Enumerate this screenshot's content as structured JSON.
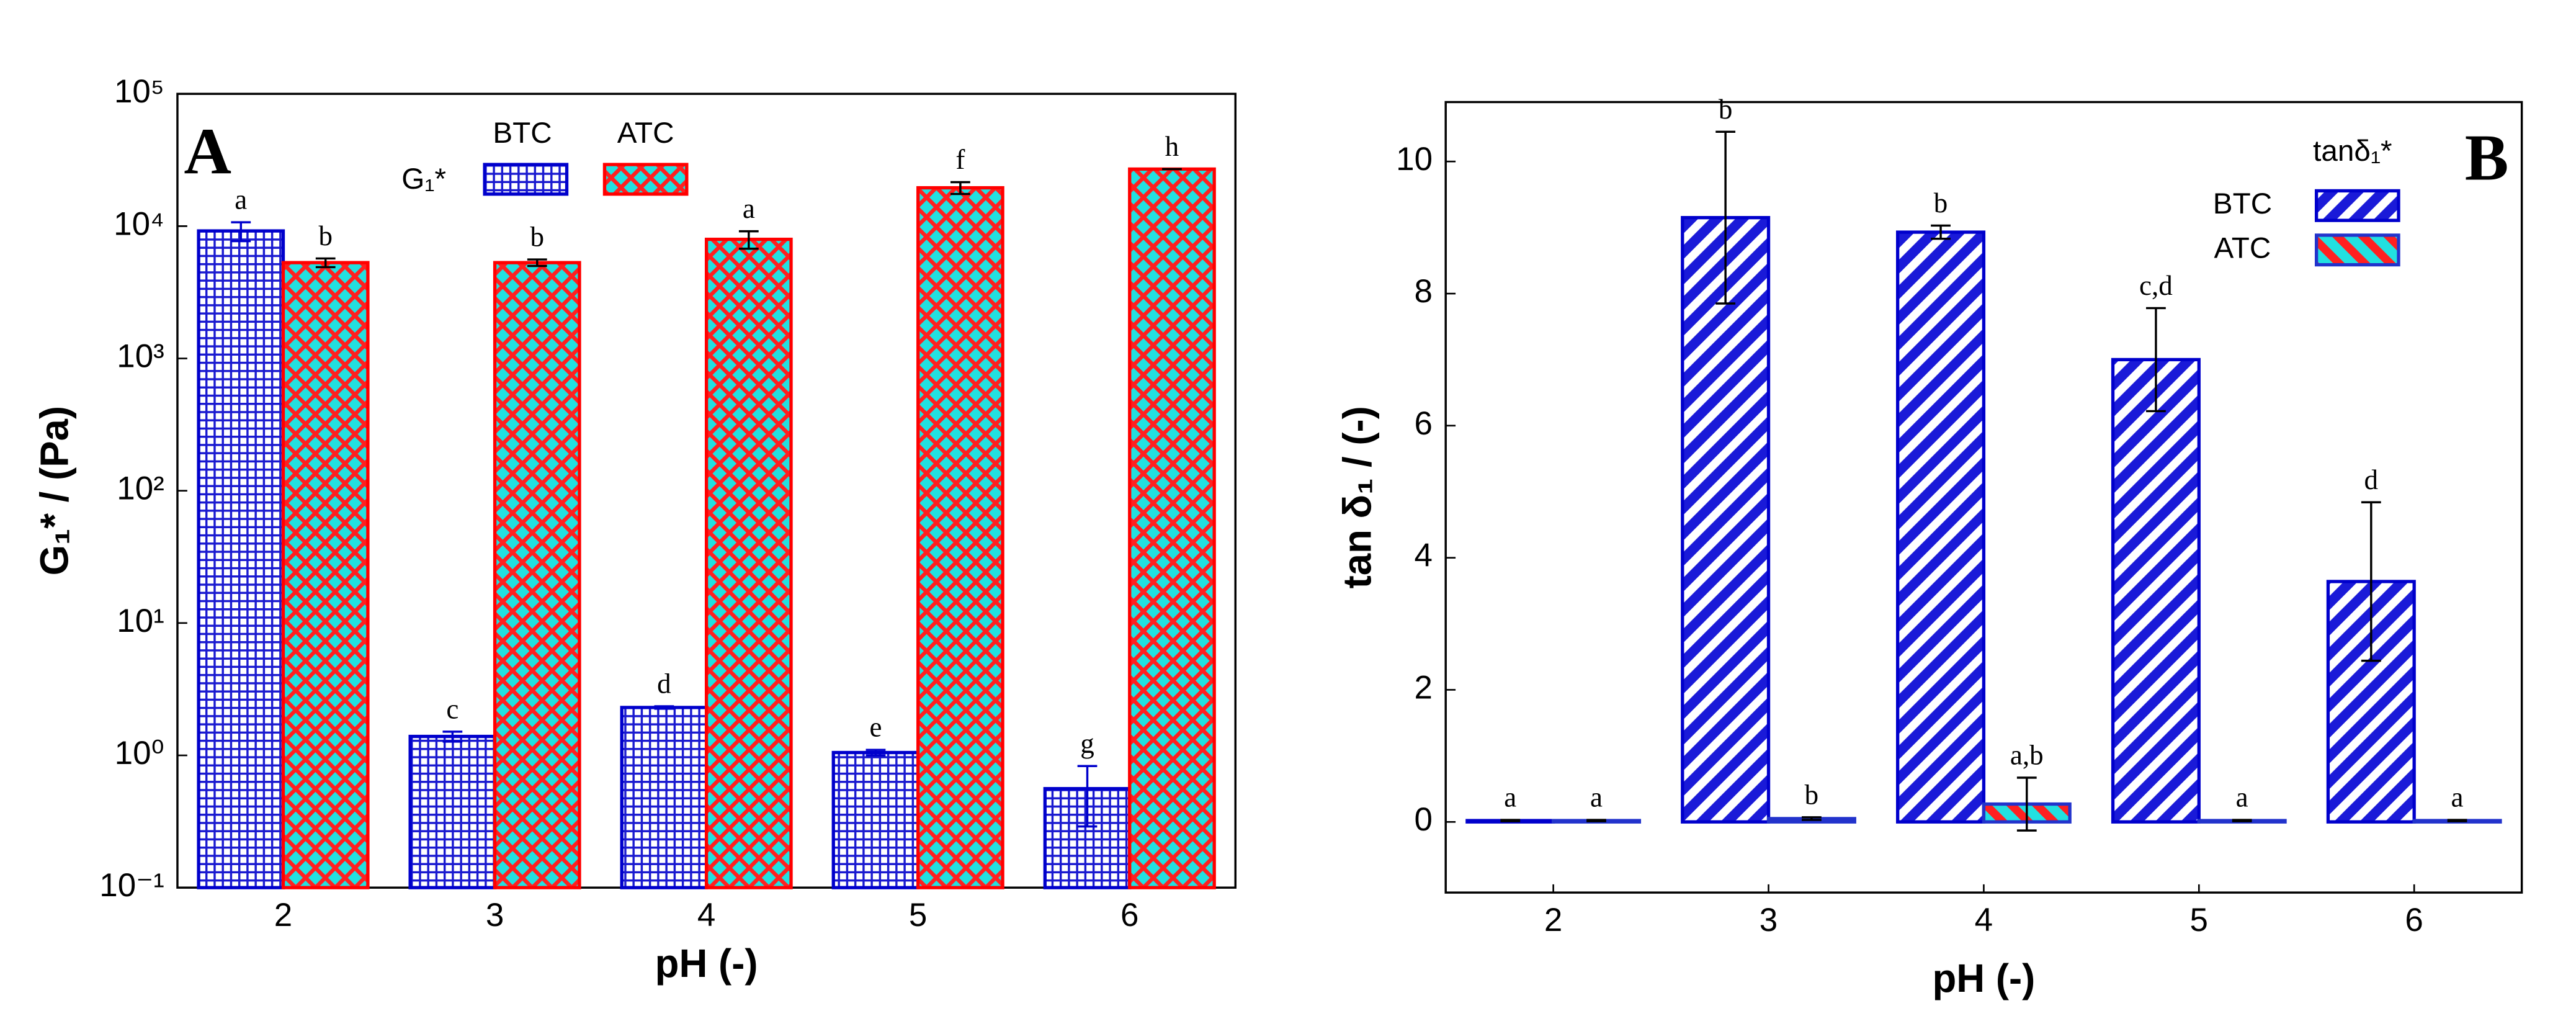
{
  "chart_data": [
    {
      "type": "bar",
      "panel_label": "A",
      "log_y": true,
      "categories": [
        "2",
        "3",
        "4",
        "5",
        "6"
      ],
      "xlabel": "pH (-)",
      "ylabel": "G₁* / (Pa)",
      "legend_title": "G₁*",
      "ylim": [
        0.1,
        100000
      ],
      "yticks": [
        {
          "value": 0.1,
          "label": "10⁻¹"
        },
        {
          "value": 1,
          "label": "10⁰"
        },
        {
          "value": 10,
          "label": "10¹"
        },
        {
          "value": 100,
          "label": "10²"
        },
        {
          "value": 1000,
          "label": "10³"
        },
        {
          "value": 10000,
          "label": "10⁴"
        },
        {
          "value": 100000,
          "label": "10⁵"
        }
      ],
      "series": [
        {
          "name": "BTC",
          "color": "#0000cc",
          "values": [
            9200,
            1.39,
            2.3,
            1.05,
            0.56
          ],
          "errors": [
            1500,
            0.12,
            0.05,
            0.05,
            0.27
          ],
          "labels": [
            "a",
            "c",
            "d",
            "e",
            "g"
          ]
        },
        {
          "name": "ATC",
          "color": "#ff0000",
          "values": [
            5300,
            5300,
            7950,
            19500,
            27000
          ],
          "errors": [
            400,
            300,
            1200,
            2000,
            0
          ],
          "labels": [
            "b",
            "b",
            "a",
            "f",
            "h"
          ]
        }
      ]
    },
    {
      "type": "bar",
      "panel_label": "B",
      "log_y": false,
      "categories": [
        "2",
        "3",
        "4",
        "5",
        "6"
      ],
      "xlabel": "pH   (-)",
      "ylabel": "tan δ₁ / (-)",
      "legend_title": "tanδ₁*",
      "ylim": [
        -1.07,
        10.9
      ],
      "yticks": [
        0,
        2,
        4,
        6,
        8,
        10
      ],
      "series": [
        {
          "name": "BTC",
          "color": "#0000cc",
          "values": [
            0.02,
            9.15,
            8.93,
            7.0,
            3.64
          ],
          "errors": [
            0.01,
            1.3,
            0.1,
            0.78,
            1.2
          ],
          "labels": [
            "a",
            "b",
            "b",
            "c,d",
            "d"
          ]
        },
        {
          "name": "ATC",
          "color": "#2233cc",
          "values": [
            0.02,
            0.05,
            0.27,
            0.02,
            0.02
          ],
          "errors": [
            0.01,
            0.02,
            0.4,
            0.01,
            0.01
          ],
          "labels": [
            "a",
            "b",
            "a,b",
            "a",
            "a"
          ]
        }
      ]
    }
  ]
}
